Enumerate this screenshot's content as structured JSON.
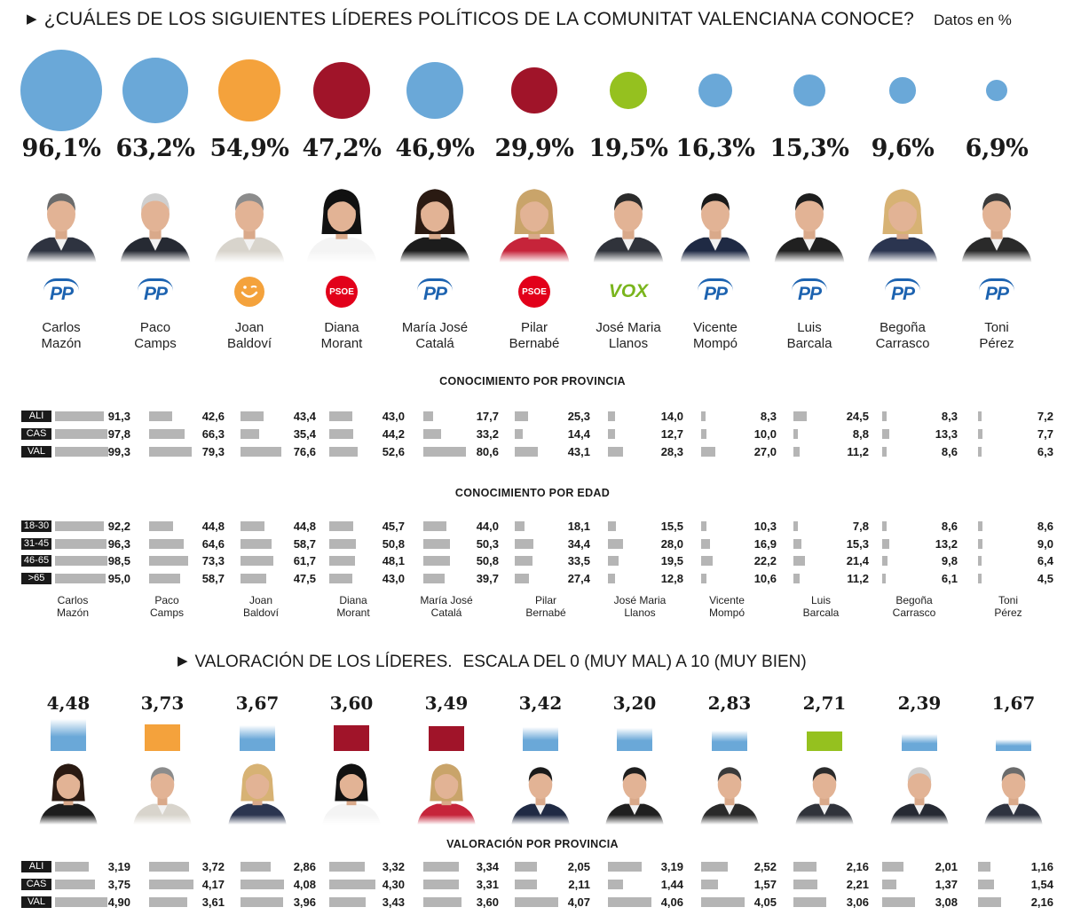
{
  "header": {
    "title": "¿CUÁLES DE LOS SIGUIENTES LÍDERES POLÍTICOS DE LA COMUNITAT VALENCIANA CONOCE?",
    "unit_note": "Datos en %"
  },
  "colors": {
    "pp": "#6aa8d8",
    "compromis": "#f4a23c",
    "psoe": "#a01429",
    "vox": "#95c11f",
    "bar": "#b5b5b5",
    "dark": "#1a1a1a"
  },
  "leaders": [
    {
      "first": "Carlos",
      "last": "Mazón",
      "party": "pp",
      "pct": "96,1%"
    },
    {
      "first": "Paco",
      "last": "Camps",
      "party": "pp",
      "pct": "63,2%"
    },
    {
      "first": "Joan",
      "last": "Baldoví",
      "party": "compromis",
      "pct": "54,9%"
    },
    {
      "first": "Diana",
      "last": "Morant",
      "party": "psoe",
      "pct": "47,2%"
    },
    {
      "first": "María José",
      "last": "Catalá",
      "party": "pp",
      "pct": "46,9%"
    },
    {
      "first": "Pilar",
      "last": "Bernabé",
      "party": "psoe",
      "pct": "29,9%"
    },
    {
      "first": "José Maria",
      "last": "Llanos",
      "party": "vox",
      "pct": "19,5%"
    },
    {
      "first": "Vicente",
      "last": "Mompó",
      "party": "pp",
      "pct": "16,3%"
    },
    {
      "first": "Luis",
      "last": "Barcala",
      "party": "pp",
      "pct": "15,3%"
    },
    {
      "first": "Begoña",
      "last": "Carrasco",
      "party": "pp",
      "pct": "9,6%"
    },
    {
      "first": "Toni",
      "last": "Pérez",
      "party": "pp",
      "pct": "6,9%"
    }
  ],
  "party_logos": {
    "pp": "PP",
    "psoe": "PSOE",
    "vox": "VOX"
  },
  "sections": {
    "provincia": "CONOCIMIENTO POR PROVINCIA",
    "edad": "CONOCIMIENTO POR EDAD",
    "valoracion_provincia": "VALORACIÓN POR PROVINCIA"
  },
  "ratings_header": {
    "title": "VALORACIÓN DE LOS LÍDERES.",
    "subtitle": "ESCALA DEL 0 (MUY MAL)  A 10 (MUY BIEN)"
  },
  "chart_data": [
    {
      "type": "bubble",
      "title": "¿CUÁLES DE LOS SIGUIENTES LÍDERES POLÍTICOS DE LA COMUNITAT VALENCIANA CONOCE?",
      "unit": "%",
      "categories": [
        "Carlos Mazón",
        "Paco Camps",
        "Joan Baldoví",
        "Diana Morant",
        "María José Catalá",
        "Pilar Bernabé",
        "José Maria Llanos",
        "Vicente Mompó",
        "Luis Barcala",
        "Begoña Carrasco",
        "Toni Pérez"
      ],
      "values": [
        96.1,
        63.2,
        54.9,
        47.2,
        46.9,
        29.9,
        19.5,
        16.3,
        15.3,
        9.6,
        6.9
      ]
    },
    {
      "type": "bar",
      "title": "CONOCIMIENTO POR PROVINCIA",
      "categories": [
        "Carlos Mazón",
        "Paco Camps",
        "Joan Baldoví",
        "Diana Morant",
        "María José Catalá",
        "Pilar Bernabé",
        "José Maria Llanos",
        "Vicente Mompó",
        "Luis Barcala",
        "Begoña Carrasco",
        "Toni Pérez"
      ],
      "row_labels": [
        "ALI",
        "CAS",
        "VAL"
      ],
      "series": [
        {
          "name": "ALI",
          "values": [
            91.3,
            42.6,
            43.4,
            43.0,
            17.7,
            25.3,
            14.0,
            8.3,
            24.5,
            8.3,
            7.2
          ],
          "labels": [
            "91,3",
            "42,6",
            "43,4",
            "43,0",
            "17,7",
            "25,3",
            "14,0",
            "8,3",
            "24,5",
            "8,3",
            "7,2"
          ]
        },
        {
          "name": "CAS",
          "values": [
            97.8,
            66.3,
            35.4,
            44.2,
            33.2,
            14.4,
            12.7,
            10.0,
            8.8,
            13.3,
            7.7
          ],
          "labels": [
            "97,8",
            "66,3",
            "35,4",
            "44,2",
            "33,2",
            "14,4",
            "12,7",
            "10,0",
            "8,8",
            "13,3",
            "7,7"
          ]
        },
        {
          "name": "VAL",
          "values": [
            99.3,
            79.3,
            76.6,
            52.6,
            80.6,
            43.1,
            28.3,
            27.0,
            11.2,
            8.6,
            6.3
          ],
          "labels": [
            "99,3",
            "79,3",
            "76,6",
            "52,6",
            "80,6",
            "43,1",
            "28,3",
            "27,0",
            "11,2",
            "8,6",
            "6,3"
          ]
        }
      ]
    },
    {
      "type": "bar",
      "title": "CONOCIMIENTO POR EDAD",
      "categories": [
        "Carlos Mazón",
        "Paco Camps",
        "Joan Baldoví",
        "Diana Morant",
        "María José Catalá",
        "Pilar Bernabé",
        "José Maria Llanos",
        "Vicente Mompó",
        "Luis Barcala",
        "Begoña Carrasco",
        "Toni Pérez"
      ],
      "row_labels": [
        "18-30",
        "31-45",
        "46-65",
        ">65"
      ],
      "series": [
        {
          "name": "18-30",
          "values": [
            92.2,
            44.8,
            44.8,
            45.7,
            44.0,
            18.1,
            15.5,
            10.3,
            7.8,
            8.6,
            8.6
          ],
          "labels": [
            "92,2",
            "44,8",
            "44,8",
            "45,7",
            "44,0",
            "18,1",
            "15,5",
            "10,3",
            "7,8",
            "8,6",
            "8,6"
          ]
        },
        {
          "name": "31-45",
          "values": [
            96.3,
            64.6,
            58.7,
            50.8,
            50.3,
            34.4,
            28.0,
            16.9,
            15.3,
            13.2,
            9.0
          ],
          "labels": [
            "96,3",
            "64,6",
            "58,7",
            "50,8",
            "50,3",
            "34,4",
            "28,0",
            "16,9",
            "15,3",
            "13,2",
            "9,0"
          ]
        },
        {
          "name": "46-65",
          "values": [
            98.5,
            73.3,
            61.7,
            48.1,
            50.8,
            33.5,
            19.5,
            22.2,
            21.4,
            9.8,
            6.4
          ],
          "labels": [
            "98,5",
            "73,3",
            "61,7",
            "48,1",
            "50,8",
            "33,5",
            "19,5",
            "22,2",
            "21,4",
            "9,8",
            "6,4"
          ]
        },
        {
          "name": ">65",
          "values": [
            95.0,
            58.7,
            47.5,
            43.0,
            39.7,
            27.4,
            12.8,
            10.6,
            11.2,
            6.1,
            4.5
          ],
          "labels": [
            "95,0",
            "58,7",
            "47,5",
            "43,0",
            "39,7",
            "27,4",
            "12,8",
            "10,6",
            "11,2",
            "6,1",
            "4,5"
          ]
        }
      ]
    },
    {
      "type": "bar",
      "title": "VALORACIÓN DE LOS LÍDERES. ESCALA DEL 0 (MUY MAL) A 10 (MUY BIEN)",
      "categories": [
        "María José Catalá",
        "Joan Baldoví",
        "Begoña Carrasco",
        "Diana Morant",
        "Pilar Bernabé",
        "Vicente Mompó",
        "Luis Barcala",
        "Toni Pérez",
        "José Maria Llanos",
        "Paco Camps",
        "Carlos Mazón"
      ],
      "parties": [
        "pp",
        "compromis",
        "pp",
        "psoe",
        "psoe",
        "pp",
        "pp",
        "pp",
        "vox",
        "pp",
        "pp"
      ],
      "values": [
        4.48,
        3.73,
        3.67,
        3.6,
        3.49,
        3.42,
        3.2,
        2.83,
        2.71,
        2.39,
        1.67
      ],
      "labels": [
        "4,48",
        "3,73",
        "3,67",
        "3,60",
        "3,49",
        "3,42",
        "3,20",
        "2,83",
        "2,71",
        "2,39",
        "1,67"
      ],
      "ylim": [
        0,
        10
      ]
    },
    {
      "type": "bar",
      "title": "VALORACIÓN POR PROVINCIA",
      "categories": [
        "María José Catalá",
        "Joan Baldoví",
        "Begoña Carrasco",
        "Diana Morant",
        "Pilar Bernabé",
        "Vicente Mompó",
        "Luis Barcala",
        "Toni Pérez",
        "José Maria Llanos",
        "Paco Camps",
        "Carlos Mazón"
      ],
      "row_labels": [
        "ALI",
        "CAS",
        "VAL"
      ],
      "series": [
        {
          "name": "ALI",
          "values": [
            3.19,
            3.72,
            2.86,
            3.32,
            3.34,
            2.05,
            3.19,
            2.52,
            2.16,
            2.01,
            1.16
          ],
          "labels": [
            "3,19",
            "3,72",
            "2,86",
            "3,32",
            "3,34",
            "2,05",
            "3,19",
            "2,52",
            "2,16",
            "2,01",
            "1,16"
          ]
        },
        {
          "name": "CAS",
          "values": [
            3.75,
            4.17,
            4.08,
            4.3,
            3.31,
            2.11,
            1.44,
            1.57,
            2.21,
            1.37,
            1.54
          ],
          "labels": [
            "3,75",
            "4,17",
            "4,08",
            "4,30",
            "3,31",
            "2,11",
            "1,44",
            "1,57",
            "2,21",
            "1,37",
            "1,54"
          ]
        },
        {
          "name": "VAL",
          "values": [
            4.9,
            3.61,
            3.96,
            3.43,
            3.6,
            4.07,
            4.06,
            4.05,
            3.06,
            3.08,
            2.16
          ],
          "labels": [
            "4,90",
            "3,61",
            "3,96",
            "3,43",
            "3,60",
            "4,07",
            "4,06",
            "4,05",
            "3,06",
            "3,08",
            "2,16"
          ]
        }
      ]
    }
  ]
}
